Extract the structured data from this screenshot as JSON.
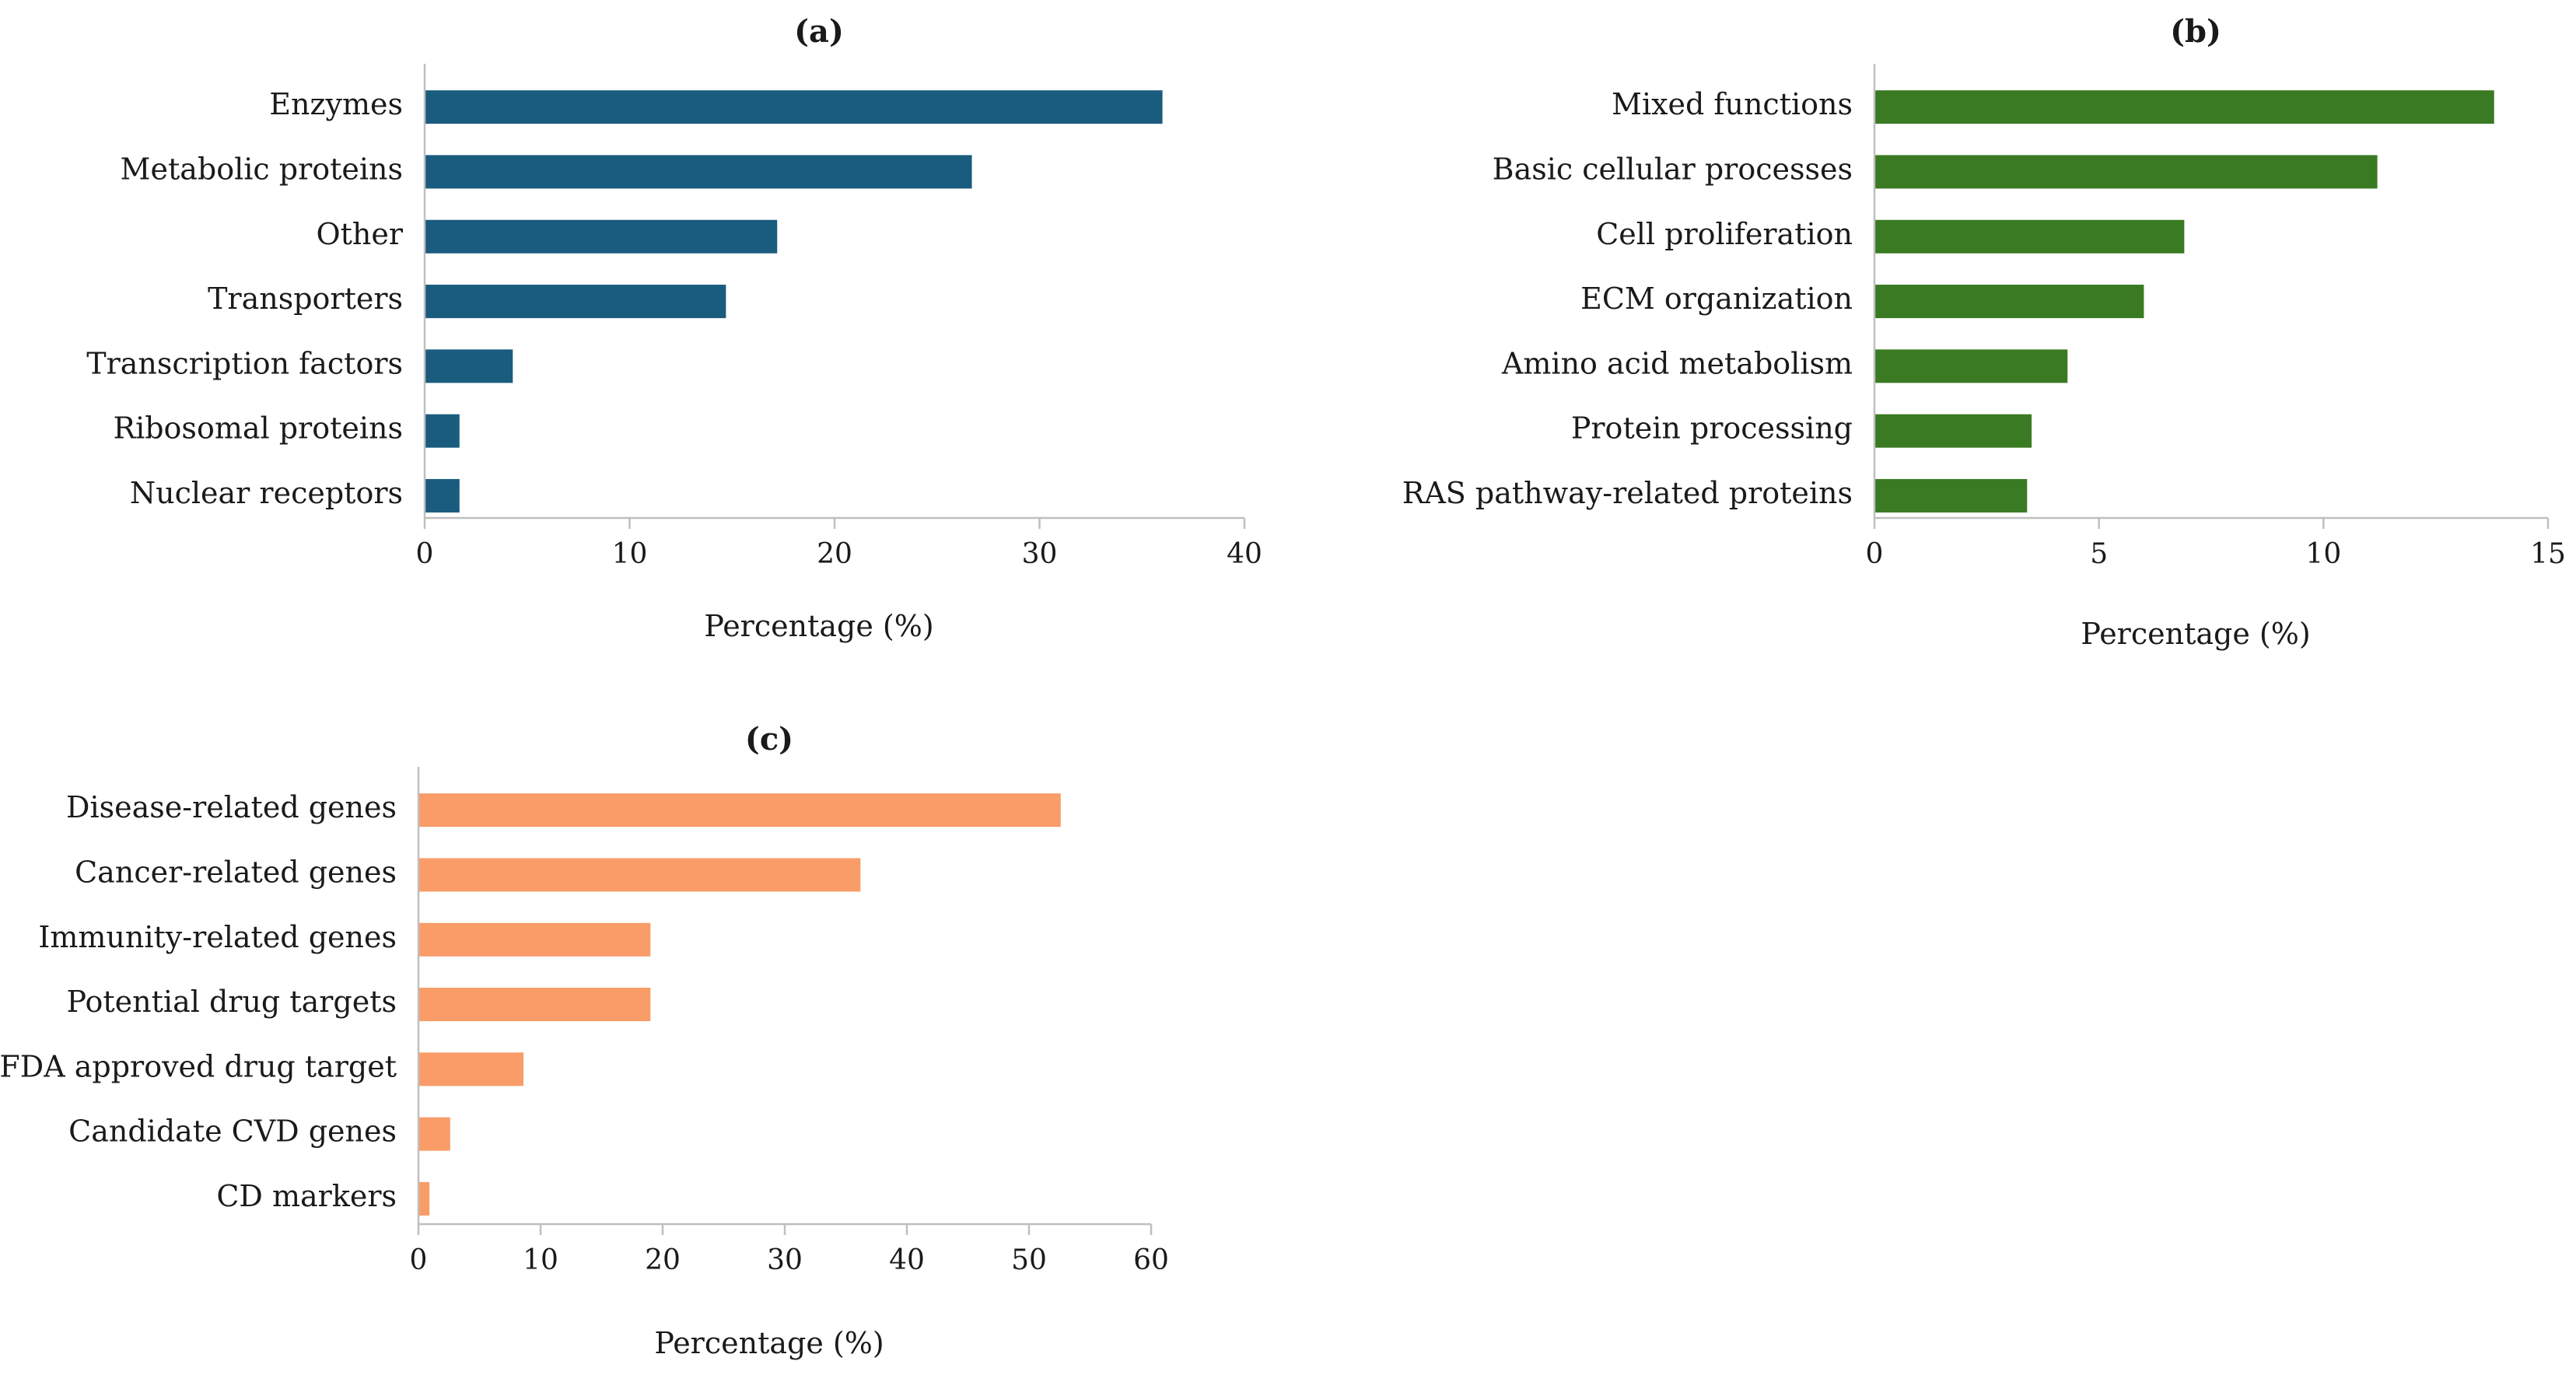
{
  "chart_data": [
    {
      "type": "bar",
      "orientation": "horizontal",
      "title": "(a)",
      "xlabel": "Percentage (%)",
      "ylabel": "",
      "categories": [
        "Enzymes",
        "Metabolic proteins",
        "Other",
        "Transporters",
        "Transcription factors",
        "Ribosomal proteins",
        "Nuclear receptors"
      ],
      "values": [
        36.0,
        26.7,
        17.2,
        14.7,
        4.3,
        1.7,
        1.7
      ],
      "xlim": [
        0,
        40
      ],
      "ticks": [
        0,
        10,
        20,
        30,
        40
      ],
      "color": "#1a5c7e",
      "grid": false
    },
    {
      "type": "bar",
      "orientation": "horizontal",
      "title": "(b)",
      "xlabel": "Percentage (%)",
      "ylabel": "",
      "categories": [
        "Mixed functions",
        "Basic cellular processes",
        "Cell proliferation",
        "ECM organization",
        "Amino acid metabolism",
        "Protein processing",
        "RAS pathway-related proteins"
      ],
      "values": [
        13.8,
        11.2,
        6.9,
        6.0,
        4.3,
        3.5,
        3.4
      ],
      "xlim": [
        0,
        15
      ],
      "ticks": [
        0,
        5,
        10,
        15
      ],
      "color": "#3a7a22",
      "grid": false
    },
    {
      "type": "bar",
      "orientation": "horizontal",
      "title": "(c)",
      "xlabel": "Percentage (%)",
      "ylabel": "",
      "categories": [
        "Disease-related genes",
        "Cancer-related genes",
        "Immunity-related genes",
        "Potential drug targets",
        "FDA approved drug target",
        "Candidate CVD genes",
        "CD markers"
      ],
      "values": [
        52.6,
        36.2,
        19.0,
        19.0,
        8.6,
        2.6,
        0.9
      ],
      "xlim": [
        0,
        60
      ],
      "ticks": [
        0,
        10,
        20,
        30,
        40,
        50,
        60
      ],
      "color": "#f99c68",
      "grid": false
    }
  ]
}
